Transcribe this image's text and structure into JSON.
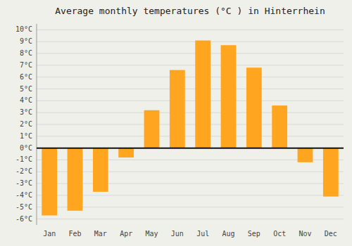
{
  "chart_data": {
    "type": "bar",
    "title": "Average monthly temperatures (°C ) in Hinterrhein",
    "categories": [
      "Jan",
      "Feb",
      "Mar",
      "Apr",
      "May",
      "Jun",
      "Jul",
      "Aug",
      "Sep",
      "Oct",
      "Nov",
      "Dec"
    ],
    "values": [
      -5.7,
      -5.3,
      -3.7,
      -0.8,
      3.2,
      6.6,
      9.1,
      8.7,
      6.8,
      3.6,
      -1.2,
      -4.1
    ],
    "color": "#FFA520",
    "ylim": [
      -6.5,
      10.5
    ],
    "yticks": [
      {
        "value": -6,
        "label": "-6°C"
      },
      {
        "value": -5,
        "label": "-5°C"
      },
      {
        "value": -4,
        "label": "-4°C"
      },
      {
        "value": -3,
        "label": "-3°C"
      },
      {
        "value": -2,
        "label": "-2°C"
      },
      {
        "value": -1,
        "label": "-1°C"
      },
      {
        "value": 0,
        "label": "0°C"
      },
      {
        "value": 1,
        "label": "1°C"
      },
      {
        "value": 2,
        "label": "2°C"
      },
      {
        "value": 3,
        "label": "3°C"
      },
      {
        "value": 4,
        "label": "4°C"
      },
      {
        "value": 5,
        "label": "5°C"
      },
      {
        "value": 6,
        "label": "6°C"
      },
      {
        "value": 7,
        "label": "7°C"
      },
      {
        "value": 8,
        "label": "8°C"
      },
      {
        "value": 9,
        "label": "9°C"
      },
      {
        "value": 10,
        "label": "10°C"
      }
    ],
    "grid": true
  }
}
